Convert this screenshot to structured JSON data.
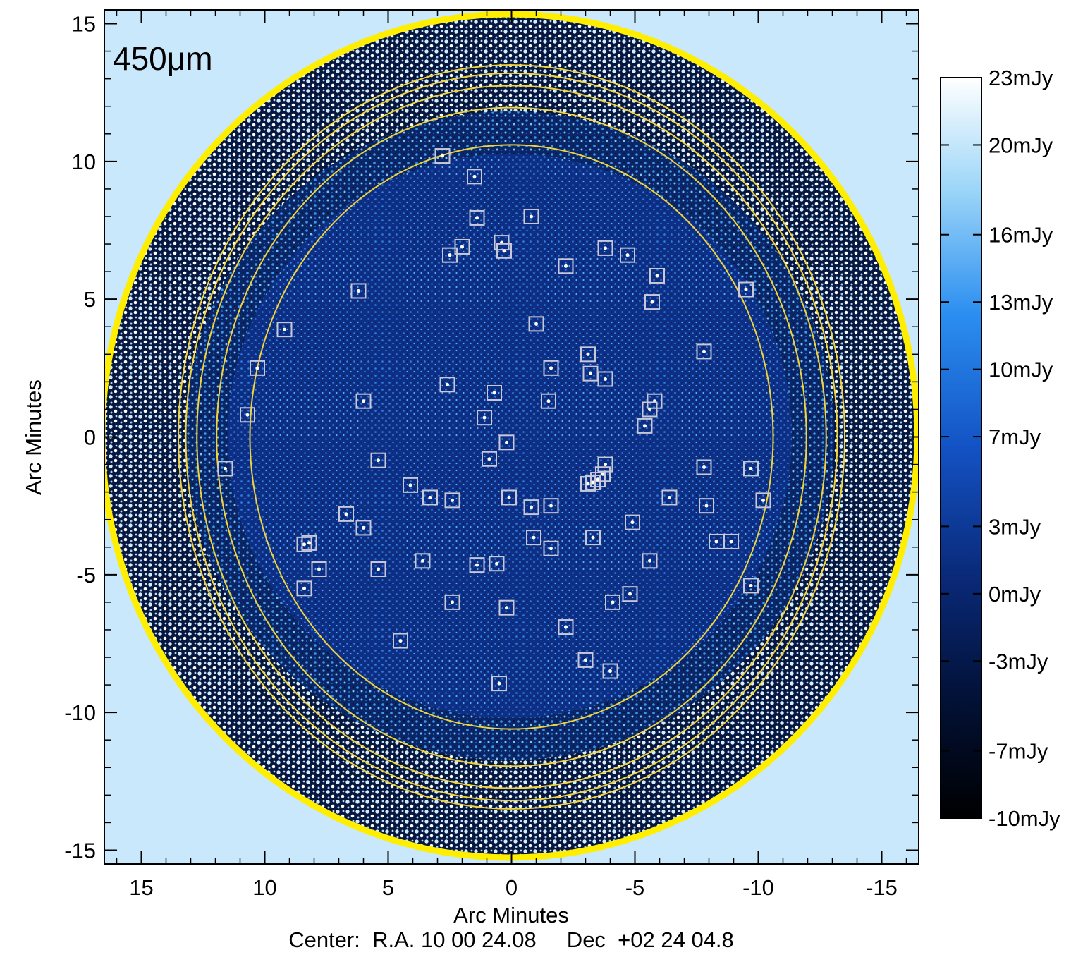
{
  "chart_data": {
    "type": "heatmap",
    "title": "",
    "band_label": "450μm",
    "xlabel": "Arc Minutes",
    "ylabel": "Arc Minutes",
    "footer": "Center:  R.A. 10 00 24.08     Dec  +02 24 04.8",
    "xlim": [
      16.5,
      -16.5
    ],
    "ylim": [
      -15.5,
      15.5
    ],
    "x_ticks": [
      15,
      10,
      5,
      0,
      -5,
      -10,
      -15
    ],
    "y_ticks": [
      15,
      10,
      5,
      0,
      -5,
      -10,
      -15
    ],
    "x_tick_labels": [
      "15",
      "10",
      "5",
      "0",
      "-5",
      "-10",
      "-15"
    ],
    "y_tick_labels": [
      "15",
      "10",
      "5",
      "0",
      "-5",
      "-10",
      "-15"
    ],
    "colorbar": {
      "range": [
        -10,
        23
      ],
      "ticks": [
        23,
        20,
        16,
        13,
        10,
        7,
        3,
        0,
        -3,
        -7,
        -10
      ],
      "tick_labels": [
        "23mJy",
        "20mJy",
        "16mJy",
        "13mJy",
        "10mJy",
        "7mJy",
        "3mJy",
        "0mJy",
        "-3mJy",
        "-7mJy",
        "-10mJy"
      ],
      "colors": [
        "#000000",
        "#02123a",
        "#0a2a7a",
        "#1352c4",
        "#2b8ef0",
        "#9dd6f8",
        "#ffffff"
      ]
    },
    "contours_radius_arcmin": [
      10.6,
      11.95,
      12.75,
      13.2,
      13.5
    ],
    "sources": [
      [
        2.8,
        10.2
      ],
      [
        1.5,
        9.45
      ],
      [
        1.4,
        7.95
      ],
      [
        -0.8,
        8.0
      ],
      [
        0.4,
        7.05
      ],
      [
        0.3,
        6.75
      ],
      [
        2.0,
        6.9
      ],
      [
        2.5,
        6.6
      ],
      [
        -2.2,
        6.2
      ],
      [
        -3.8,
        6.85
      ],
      [
        -4.7,
        6.6
      ],
      [
        -5.9,
        5.85
      ],
      [
        -5.7,
        4.9
      ],
      [
        -9.5,
        5.35
      ],
      [
        6.2,
        5.3
      ],
      [
        9.2,
        3.9
      ],
      [
        -1.0,
        4.1
      ],
      [
        10.3,
        2.5
      ],
      [
        -3.1,
        3.0
      ],
      [
        -7.8,
        3.1
      ],
      [
        -1.6,
        2.5
      ],
      [
        -3.2,
        2.3
      ],
      [
        -3.8,
        2.1
      ],
      [
        2.6,
        1.9
      ],
      [
        0.7,
        1.6
      ],
      [
        -5.8,
        1.3
      ],
      [
        6.0,
        1.3
      ],
      [
        -1.5,
        1.3
      ],
      [
        -5.6,
        1.0
      ],
      [
        10.7,
        0.8
      ],
      [
        1.1,
        0.7
      ],
      [
        -5.4,
        0.4
      ],
      [
        0.2,
        -0.2
      ],
      [
        0.9,
        -0.8
      ],
      [
        5.4,
        -0.85
      ],
      [
        -3.8,
        -1.0
      ],
      [
        -7.8,
        -1.1
      ],
      [
        -9.7,
        -1.15
      ],
      [
        11.6,
        -1.15
      ],
      [
        -3.7,
        -1.35
      ],
      [
        -3.5,
        -1.55
      ],
      [
        -3.3,
        -1.65
      ],
      [
        -3.1,
        -1.7
      ],
      [
        4.1,
        -1.75
      ],
      [
        3.3,
        -2.2
      ],
      [
        2.4,
        -2.3
      ],
      [
        0.1,
        -2.2
      ],
      [
        -6.4,
        -2.2
      ],
      [
        -7.9,
        -2.5
      ],
      [
        -10.2,
        -2.3
      ],
      [
        -0.8,
        -2.55
      ],
      [
        -1.6,
        -2.5
      ],
      [
        6.7,
        -2.8
      ],
      [
        6.0,
        -3.3
      ],
      [
        -4.9,
        -3.1
      ],
      [
        -0.9,
        -3.65
      ],
      [
        -3.3,
        -3.65
      ],
      [
        -8.3,
        -3.8
      ],
      [
        -8.9,
        -3.8
      ],
      [
        -1.6,
        -4.05
      ],
      [
        8.4,
        -3.9
      ],
      [
        8.2,
        -3.85
      ],
      [
        3.6,
        -4.5
      ],
      [
        -5.6,
        -4.5
      ],
      [
        1.4,
        -4.65
      ],
      [
        0.6,
        -4.6
      ],
      [
        7.8,
        -4.8
      ],
      [
        5.4,
        -4.8
      ],
      [
        8.4,
        -5.5
      ],
      [
        -9.7,
        -5.4
      ],
      [
        -4.8,
        -5.7
      ],
      [
        2.4,
        -6.0
      ],
      [
        -4.1,
        -6.0
      ],
      [
        0.2,
        -6.2
      ],
      [
        -2.2,
        -6.9
      ],
      [
        4.5,
        -7.4
      ],
      [
        -3.0,
        -8.1
      ],
      [
        -4.0,
        -8.5
      ],
      [
        0.5,
        -8.95
      ]
    ]
  }
}
